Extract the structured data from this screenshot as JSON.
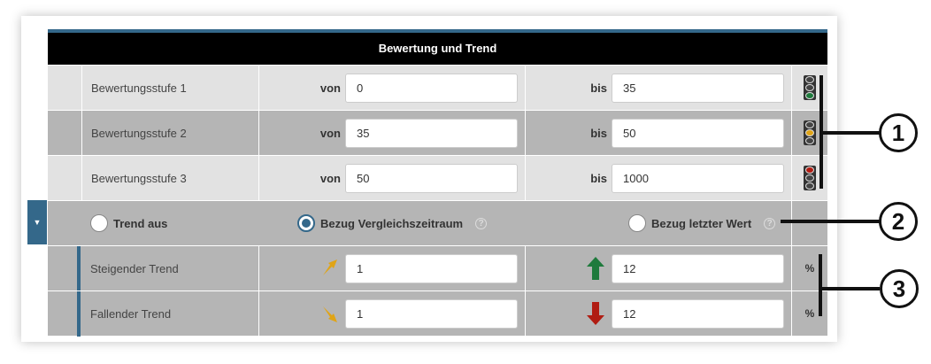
{
  "header": {
    "title": "Bewertung und Trend"
  },
  "levels": [
    {
      "label": "Bewertungsstufe 1",
      "von_label": "von",
      "von": "0",
      "bis_label": "bis",
      "bis": "35",
      "light": "green"
    },
    {
      "label": "Bewertungsstufe 2",
      "von_label": "von",
      "von": "35",
      "bis_label": "bis",
      "bis": "50",
      "light": "yellow"
    },
    {
      "label": "Bewertungsstufe 3",
      "von_label": "von",
      "von": "50",
      "bis_label": "bis",
      "bis": "1000",
      "light": "red"
    }
  ],
  "trend_options": [
    {
      "label": "Trend aus",
      "selected": false
    },
    {
      "label": "Bezug Vergleichszeitraum",
      "selected": true,
      "help": "?"
    },
    {
      "label": "Bezug letzter Wert",
      "selected": false,
      "help": "?"
    }
  ],
  "trends": [
    {
      "label": "Steigender Trend",
      "value1": "1",
      "value2": "12",
      "unit": "%"
    },
    {
      "label": "Fallender Trend",
      "value1": "1",
      "value2": "12",
      "unit": "%"
    }
  ],
  "colors": {
    "accent": "#34688a",
    "green": "#1e7a3c",
    "yellow": "#e0a416",
    "red": "#b01c12",
    "trend_arrow": "#e0a416"
  },
  "callouts": [
    "1",
    "2",
    "3"
  ]
}
